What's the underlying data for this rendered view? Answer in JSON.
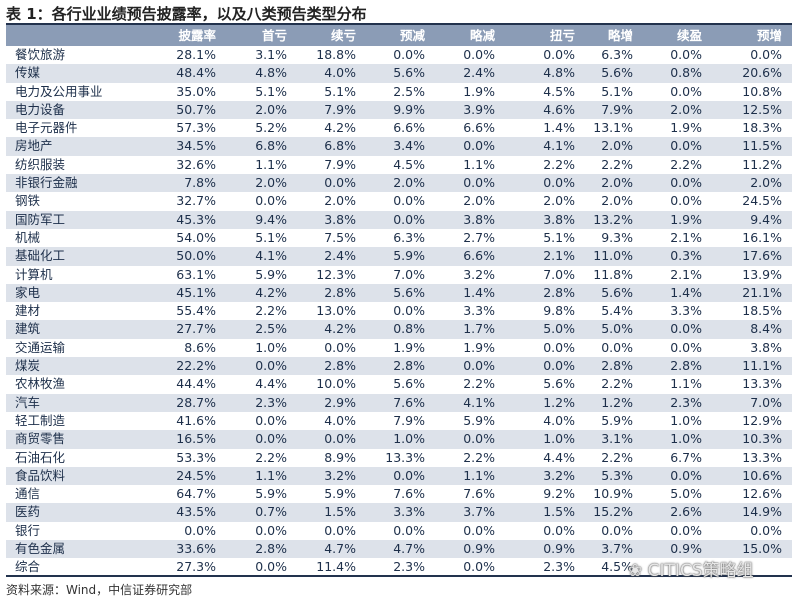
{
  "title": "表 1：各行业业绩预告披露率，以及八类预告类型分布",
  "columns": [
    "",
    "披露率",
    "首亏",
    "续亏",
    "预减",
    "略减",
    "扭亏",
    "略增",
    "续盈",
    "预增"
  ],
  "rows": [
    [
      "餐饮旅游",
      "28.1%",
      "3.1%",
      "18.8%",
      "0.0%",
      "0.0%",
      "0.0%",
      "6.3%",
      "0.0%",
      "0.0%"
    ],
    [
      "传媒",
      "48.4%",
      "4.8%",
      "4.0%",
      "5.6%",
      "2.4%",
      "4.8%",
      "5.6%",
      "0.8%",
      "20.6%"
    ],
    [
      "电力及公用事业",
      "35.0%",
      "5.1%",
      "5.1%",
      "2.5%",
      "1.9%",
      "4.5%",
      "5.1%",
      "0.0%",
      "10.8%"
    ],
    [
      "电力设备",
      "50.7%",
      "2.0%",
      "7.9%",
      "9.9%",
      "3.9%",
      "4.6%",
      "7.9%",
      "2.0%",
      "12.5%"
    ],
    [
      "电子元器件",
      "57.3%",
      "5.2%",
      "4.2%",
      "6.6%",
      "6.6%",
      "1.4%",
      "13.1%",
      "1.9%",
      "18.3%"
    ],
    [
      "房地产",
      "34.5%",
      "6.8%",
      "6.8%",
      "3.4%",
      "0.0%",
      "4.1%",
      "2.0%",
      "0.0%",
      "11.5%"
    ],
    [
      "纺织服装",
      "32.6%",
      "1.1%",
      "7.9%",
      "4.5%",
      "1.1%",
      "2.2%",
      "2.2%",
      "2.2%",
      "11.2%"
    ],
    [
      "非银行金融",
      "7.8%",
      "2.0%",
      "0.0%",
      "2.0%",
      "0.0%",
      "0.0%",
      "2.0%",
      "0.0%",
      "2.0%"
    ],
    [
      "钢铁",
      "32.7%",
      "0.0%",
      "2.0%",
      "0.0%",
      "2.0%",
      "2.0%",
      "2.0%",
      "0.0%",
      "24.5%"
    ],
    [
      "国防军工",
      "45.3%",
      "9.4%",
      "3.8%",
      "0.0%",
      "3.8%",
      "3.8%",
      "13.2%",
      "1.9%",
      "9.4%"
    ],
    [
      "机械",
      "54.0%",
      "5.1%",
      "7.5%",
      "6.3%",
      "2.7%",
      "5.1%",
      "9.3%",
      "2.1%",
      "16.1%"
    ],
    [
      "基础化工",
      "50.0%",
      "4.1%",
      "2.4%",
      "5.9%",
      "6.6%",
      "2.1%",
      "11.0%",
      "0.3%",
      "17.6%"
    ],
    [
      "计算机",
      "63.1%",
      "5.9%",
      "12.3%",
      "7.0%",
      "3.2%",
      "7.0%",
      "11.8%",
      "2.1%",
      "13.9%"
    ],
    [
      "家电",
      "45.1%",
      "4.2%",
      "2.8%",
      "5.6%",
      "1.4%",
      "2.8%",
      "5.6%",
      "1.4%",
      "21.1%"
    ],
    [
      "建材",
      "55.4%",
      "2.2%",
      "13.0%",
      "0.0%",
      "3.3%",
      "9.8%",
      "5.4%",
      "3.3%",
      "18.5%"
    ],
    [
      "建筑",
      "27.7%",
      "2.5%",
      "4.2%",
      "0.8%",
      "1.7%",
      "5.0%",
      "5.0%",
      "0.0%",
      "8.4%"
    ],
    [
      "交通运输",
      "8.6%",
      "1.0%",
      "0.0%",
      "1.9%",
      "1.9%",
      "0.0%",
      "0.0%",
      "0.0%",
      "3.8%"
    ],
    [
      "煤炭",
      "22.2%",
      "0.0%",
      "2.8%",
      "2.8%",
      "0.0%",
      "0.0%",
      "2.8%",
      "2.8%",
      "11.1%"
    ],
    [
      "农林牧渔",
      "44.4%",
      "4.4%",
      "10.0%",
      "5.6%",
      "2.2%",
      "5.6%",
      "2.2%",
      "1.1%",
      "13.3%"
    ],
    [
      "汽车",
      "28.7%",
      "2.3%",
      "2.9%",
      "7.6%",
      "4.1%",
      "1.2%",
      "1.2%",
      "2.3%",
      "7.0%"
    ],
    [
      "轻工制造",
      "41.6%",
      "0.0%",
      "4.0%",
      "7.9%",
      "5.9%",
      "4.0%",
      "5.9%",
      "1.0%",
      "12.9%"
    ],
    [
      "商贸零售",
      "16.5%",
      "0.0%",
      "0.0%",
      "1.0%",
      "0.0%",
      "1.0%",
      "3.1%",
      "1.0%",
      "10.3%"
    ],
    [
      "石油石化",
      "53.3%",
      "2.2%",
      "8.9%",
      "13.3%",
      "2.2%",
      "4.4%",
      "2.2%",
      "6.7%",
      "13.3%"
    ],
    [
      "食品饮料",
      "24.5%",
      "1.1%",
      "3.2%",
      "0.0%",
      "1.1%",
      "3.2%",
      "5.3%",
      "0.0%",
      "10.6%"
    ],
    [
      "通信",
      "64.7%",
      "5.9%",
      "5.9%",
      "7.6%",
      "7.6%",
      "9.2%",
      "10.9%",
      "5.0%",
      "12.6%"
    ],
    [
      "医药",
      "43.5%",
      "0.7%",
      "1.5%",
      "3.3%",
      "3.7%",
      "1.5%",
      "15.2%",
      "2.6%",
      "14.9%"
    ],
    [
      "银行",
      "0.0%",
      "0.0%",
      "0.0%",
      "0.0%",
      "0.0%",
      "0.0%",
      "0.0%",
      "0.0%",
      "0.0%"
    ],
    [
      "有色金属",
      "33.6%",
      "2.8%",
      "4.7%",
      "4.7%",
      "0.9%",
      "0.9%",
      "3.7%",
      "0.9%",
      "15.0%"
    ],
    [
      "综合",
      "27.3%",
      "0.0%",
      "11.4%",
      "2.3%",
      "0.0%",
      "2.3%",
      "4.5%",
      "",
      ""
    ]
  ],
  "source": "资料来源：Wind，中信证券研究部",
  "watermark": "CITICS策略组",
  "colors": {
    "header_bg": "#8b9cb6",
    "stripe": "#dde2ea",
    "rule": "#22324d",
    "text": "#1d2f4a"
  }
}
